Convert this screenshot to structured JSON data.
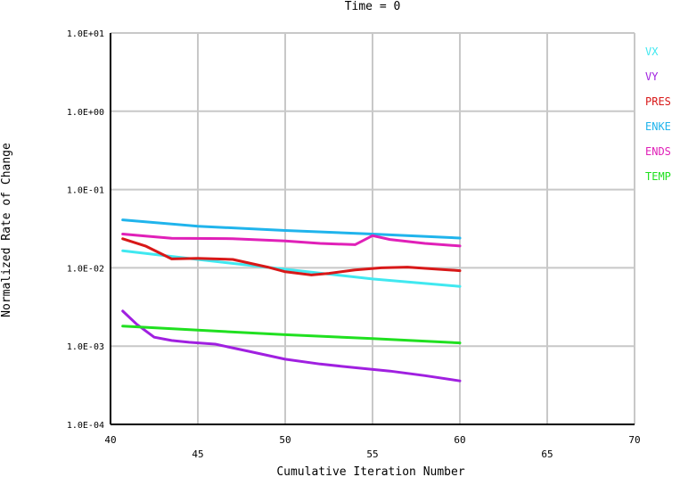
{
  "chart_data": {
    "type": "line",
    "title": "Time = 0",
    "xlabel": "Cumulative Iteration Number",
    "ylabel": "Normalized Rate of Change",
    "x_ticks": [
      40,
      45,
      50,
      55,
      60,
      65,
      70
    ],
    "x_tick_labels": [
      "40",
      "45",
      "50",
      "55",
      "60",
      "65",
      "70"
    ],
    "y_ticks": [
      0.0001,
      0.001,
      0.01,
      0.1,
      1,
      10
    ],
    "y_tick_labels": [
      "1.0E-04",
      "1.0E-03",
      "1.0E-02",
      "1.0E-01",
      "1.0E+00",
      "1.0E+01"
    ],
    "xlim": [
      40,
      70
    ],
    "ylim": [
      0.0001,
      10
    ],
    "y_scale": "log",
    "grid": true,
    "legend_position": "right",
    "series": [
      {
        "name": "VX",
        "color": "#40e8f0",
        "x": [
          40.7,
          45,
          50,
          55,
          60
        ],
        "y": [
          0.0165,
          0.0128,
          0.0096,
          0.0072,
          0.0058
        ]
      },
      {
        "name": "VY",
        "color": "#a020e0",
        "x": [
          40.7,
          41.5,
          42.5,
          43.5,
          44.5,
          46,
          48,
          50,
          52,
          54,
          56,
          58,
          60
        ],
        "y": [
          0.0028,
          0.0019,
          0.0013,
          0.00118,
          0.00112,
          0.00106,
          0.00085,
          0.00068,
          0.00059,
          0.00053,
          0.00048,
          0.00042,
          0.00036
        ]
      },
      {
        "name": "PRES",
        "color": "#d81818",
        "x": [
          40.7,
          42,
          43.5,
          45,
          47,
          49,
          50,
          51.5,
          52.5,
          54,
          55.5,
          57,
          58.5,
          60
        ],
        "y": [
          0.0235,
          0.019,
          0.013,
          0.0132,
          0.0128,
          0.0102,
          0.0089,
          0.0081,
          0.0085,
          0.0094,
          0.01,
          0.0102,
          0.0097,
          0.0092
        ]
      },
      {
        "name": "ENKE",
        "color": "#20b4ec",
        "x": [
          40.7,
          45,
          50,
          55,
          60
        ],
        "y": [
          0.041,
          0.034,
          0.03,
          0.027,
          0.024
        ]
      },
      {
        "name": "ENDS",
        "color": "#e020b8",
        "x": [
          40.7,
          42,
          43.5,
          47,
          50,
          52,
          54,
          55,
          56,
          58,
          60
        ],
        "y": [
          0.027,
          0.0255,
          0.0238,
          0.0236,
          0.022,
          0.0205,
          0.0198,
          0.0258,
          0.023,
          0.0205,
          0.019
        ]
      },
      {
        "name": "TEMP",
        "color": "#20e020",
        "x": [
          40.7,
          45,
          50,
          55,
          60
        ],
        "y": [
          0.0018,
          0.0016,
          0.0014,
          0.00125,
          0.0011
        ]
      }
    ]
  }
}
